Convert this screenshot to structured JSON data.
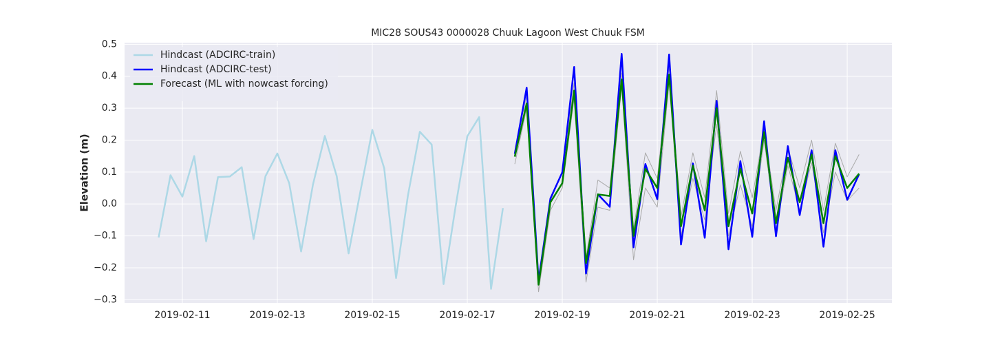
{
  "chart_data": {
    "type": "line",
    "title": "MIC28 SOUS43 0000028 Chuuk Lagoon West Chuuk FSM",
    "y_label": "Elevation (m)",
    "x": [
      "2019-02-10T12:00",
      "2019-02-10T18:00",
      "2019-02-11T00:00",
      "2019-02-11T06:00",
      "2019-02-11T12:00",
      "2019-02-11T18:00",
      "2019-02-12T00:00",
      "2019-02-12T06:00",
      "2019-02-12T12:00",
      "2019-02-12T18:00",
      "2019-02-13T00:00",
      "2019-02-13T06:00",
      "2019-02-13T12:00",
      "2019-02-13T18:00",
      "2019-02-14T00:00",
      "2019-02-14T06:00",
      "2019-02-14T12:00",
      "2019-02-14T18:00",
      "2019-02-15T00:00",
      "2019-02-15T06:00",
      "2019-02-15T12:00",
      "2019-02-15T18:00",
      "2019-02-16T00:00",
      "2019-02-16T06:00",
      "2019-02-16T12:00",
      "2019-02-16T18:00",
      "2019-02-17T00:00",
      "2019-02-17T06:00",
      "2019-02-17T12:00",
      "2019-02-17T18:00",
      "2019-02-18T00:00",
      "2019-02-18T06:00",
      "2019-02-18T12:00",
      "2019-02-18T18:00",
      "2019-02-19T00:00",
      "2019-02-19T06:00",
      "2019-02-19T12:00",
      "2019-02-19T18:00",
      "2019-02-20T00:00",
      "2019-02-20T06:00",
      "2019-02-20T12:00",
      "2019-02-20T18:00",
      "2019-02-21T00:00",
      "2019-02-21T06:00",
      "2019-02-21T12:00",
      "2019-02-21T18:00",
      "2019-02-22T00:00",
      "2019-02-22T06:00",
      "2019-02-22T12:00",
      "2019-02-22T18:00",
      "2019-02-23T00:00",
      "2019-02-23T06:00",
      "2019-02-23T12:00",
      "2019-02-23T18:00",
      "2019-02-24T00:00",
      "2019-02-24T06:00",
      "2019-02-24T12:00",
      "2019-02-24T18:00",
      "2019-02-25T00:00",
      "2019-02-25T06:00"
    ],
    "series": [
      {
        "color": "#aaaaaa",
        "width": 1,
        "values": [
          null,
          null,
          null,
          null,
          null,
          null,
          null,
          null,
          null,
          null,
          null,
          null,
          null,
          null,
          null,
          null,
          null,
          null,
          null,
          null,
          null,
          null,
          null,
          null,
          null,
          null,
          null,
          null,
          null,
          null,
          0.165,
          0.34,
          -0.225,
          0.01,
          0.1,
          0.38,
          -0.17,
          0.075,
          0.05,
          0.41,
          -0.08,
          0.16,
          0.08,
          0.43,
          -0.04,
          0.16,
          0.02,
          0.355,
          -0.03,
          0.165,
          0.02,
          0.235,
          -0.02,
          0.175,
          0.05,
          0.2,
          -0.02,
          0.19,
          0.085,
          0.155
        ]
      },
      {
        "color": "#aaaaaa",
        "width": 1,
        "values": [
          null,
          null,
          null,
          null,
          null,
          null,
          null,
          null,
          null,
          null,
          null,
          null,
          null,
          null,
          null,
          null,
          null,
          null,
          null,
          null,
          null,
          null,
          null,
          null,
          null,
          null,
          null,
          null,
          null,
          null,
          0.125,
          0.3,
          -0.275,
          -0.02,
          0.05,
          0.33,
          -0.245,
          -0.01,
          -0.02,
          0.37,
          -0.175,
          0.05,
          -0.01,
          0.38,
          -0.1,
          0.08,
          -0.05,
          0.25,
          -0.1,
          0.06,
          -0.07,
          0.2,
          -0.08,
          0.12,
          -0.02,
          0.13,
          -0.09,
          0.1,
          0.01,
          0.05
        ]
      },
      {
        "name": "Hindcast (ADCIRC-train)",
        "color": "#add8e6",
        "width": 2.5,
        "values": [
          -0.105,
          0.09,
          0.023,
          0.15,
          -0.117,
          0.084,
          0.086,
          0.115,
          -0.11,
          0.087,
          0.158,
          0.065,
          -0.149,
          0.061,
          0.213,
          0.087,
          -0.155,
          0.04,
          0.232,
          0.112,
          -0.232,
          0.027,
          0.226,
          0.186,
          -0.251,
          -0.011,
          0.212,
          0.272,
          -0.266,
          -0.013,
          null,
          null,
          null,
          null,
          null,
          null,
          null,
          null,
          null,
          null,
          null,
          null,
          null,
          null,
          null,
          null,
          null,
          null,
          null,
          null,
          null,
          null,
          null,
          null,
          null,
          null,
          null,
          null,
          null,
          null
        ]
      },
      {
        "name": "Hindcast (ADCIRC-test)",
        "color": "#0000ff",
        "width": 2.5,
        "values": [
          null,
          null,
          null,
          null,
          null,
          null,
          null,
          null,
          null,
          null,
          null,
          null,
          null,
          null,
          null,
          null,
          null,
          null,
          null,
          null,
          null,
          null,
          null,
          null,
          null,
          null,
          null,
          null,
          null,
          null,
          0.157,
          0.364,
          -0.241,
          0.017,
          0.099,
          0.429,
          -0.218,
          0.03,
          -0.009,
          0.47,
          -0.136,
          0.125,
          0.015,
          0.468,
          -0.127,
          0.127,
          -0.106,
          0.323,
          -0.142,
          0.134,
          -0.103,
          0.259,
          -0.101,
          0.181,
          -0.035,
          0.168,
          -0.134,
          0.168,
          0.013,
          0.093
        ]
      },
      {
        "name": "Forecast (ML with nowcast forcing)",
        "color": "#008000",
        "width": 2.5,
        "values": [
          null,
          null,
          null,
          null,
          null,
          null,
          null,
          null,
          null,
          null,
          null,
          null,
          null,
          null,
          null,
          null,
          null,
          null,
          null,
          null,
          null,
          null,
          null,
          null,
          null,
          null,
          null,
          null,
          null,
          null,
          0.148,
          0.315,
          -0.253,
          0.005,
          0.065,
          0.355,
          -0.185,
          0.03,
          0.025,
          0.39,
          -0.1,
          0.11,
          0.05,
          0.405,
          -0.07,
          0.12,
          -0.02,
          0.3,
          -0.07,
          0.11,
          -0.03,
          0.225,
          -0.06,
          0.145,
          0.005,
          0.155,
          -0.06,
          0.15,
          0.05,
          0.095
        ]
      }
    ],
    "xlim": [
      "2019-02-09T18:47",
      "2019-02-25T22:35"
    ],
    "xticks": [
      "2019-02-11",
      "2019-02-13",
      "2019-02-15",
      "2019-02-17",
      "2019-02-19",
      "2019-02-21",
      "2019-02-23",
      "2019-02-25"
    ],
    "ylim": [
      -0.31,
      0.505
    ],
    "yticks": [
      {
        "value": -0.3,
        "label": "−0.3"
      },
      {
        "value": -0.2,
        "label": "−0.2"
      },
      {
        "value": -0.1,
        "label": "−0.1"
      },
      {
        "value": 0,
        "label": "0.0"
      },
      0.1,
      0.2,
      0.3,
      0.4,
      0.5
    ],
    "grid": true,
    "legend": "upper left"
  }
}
